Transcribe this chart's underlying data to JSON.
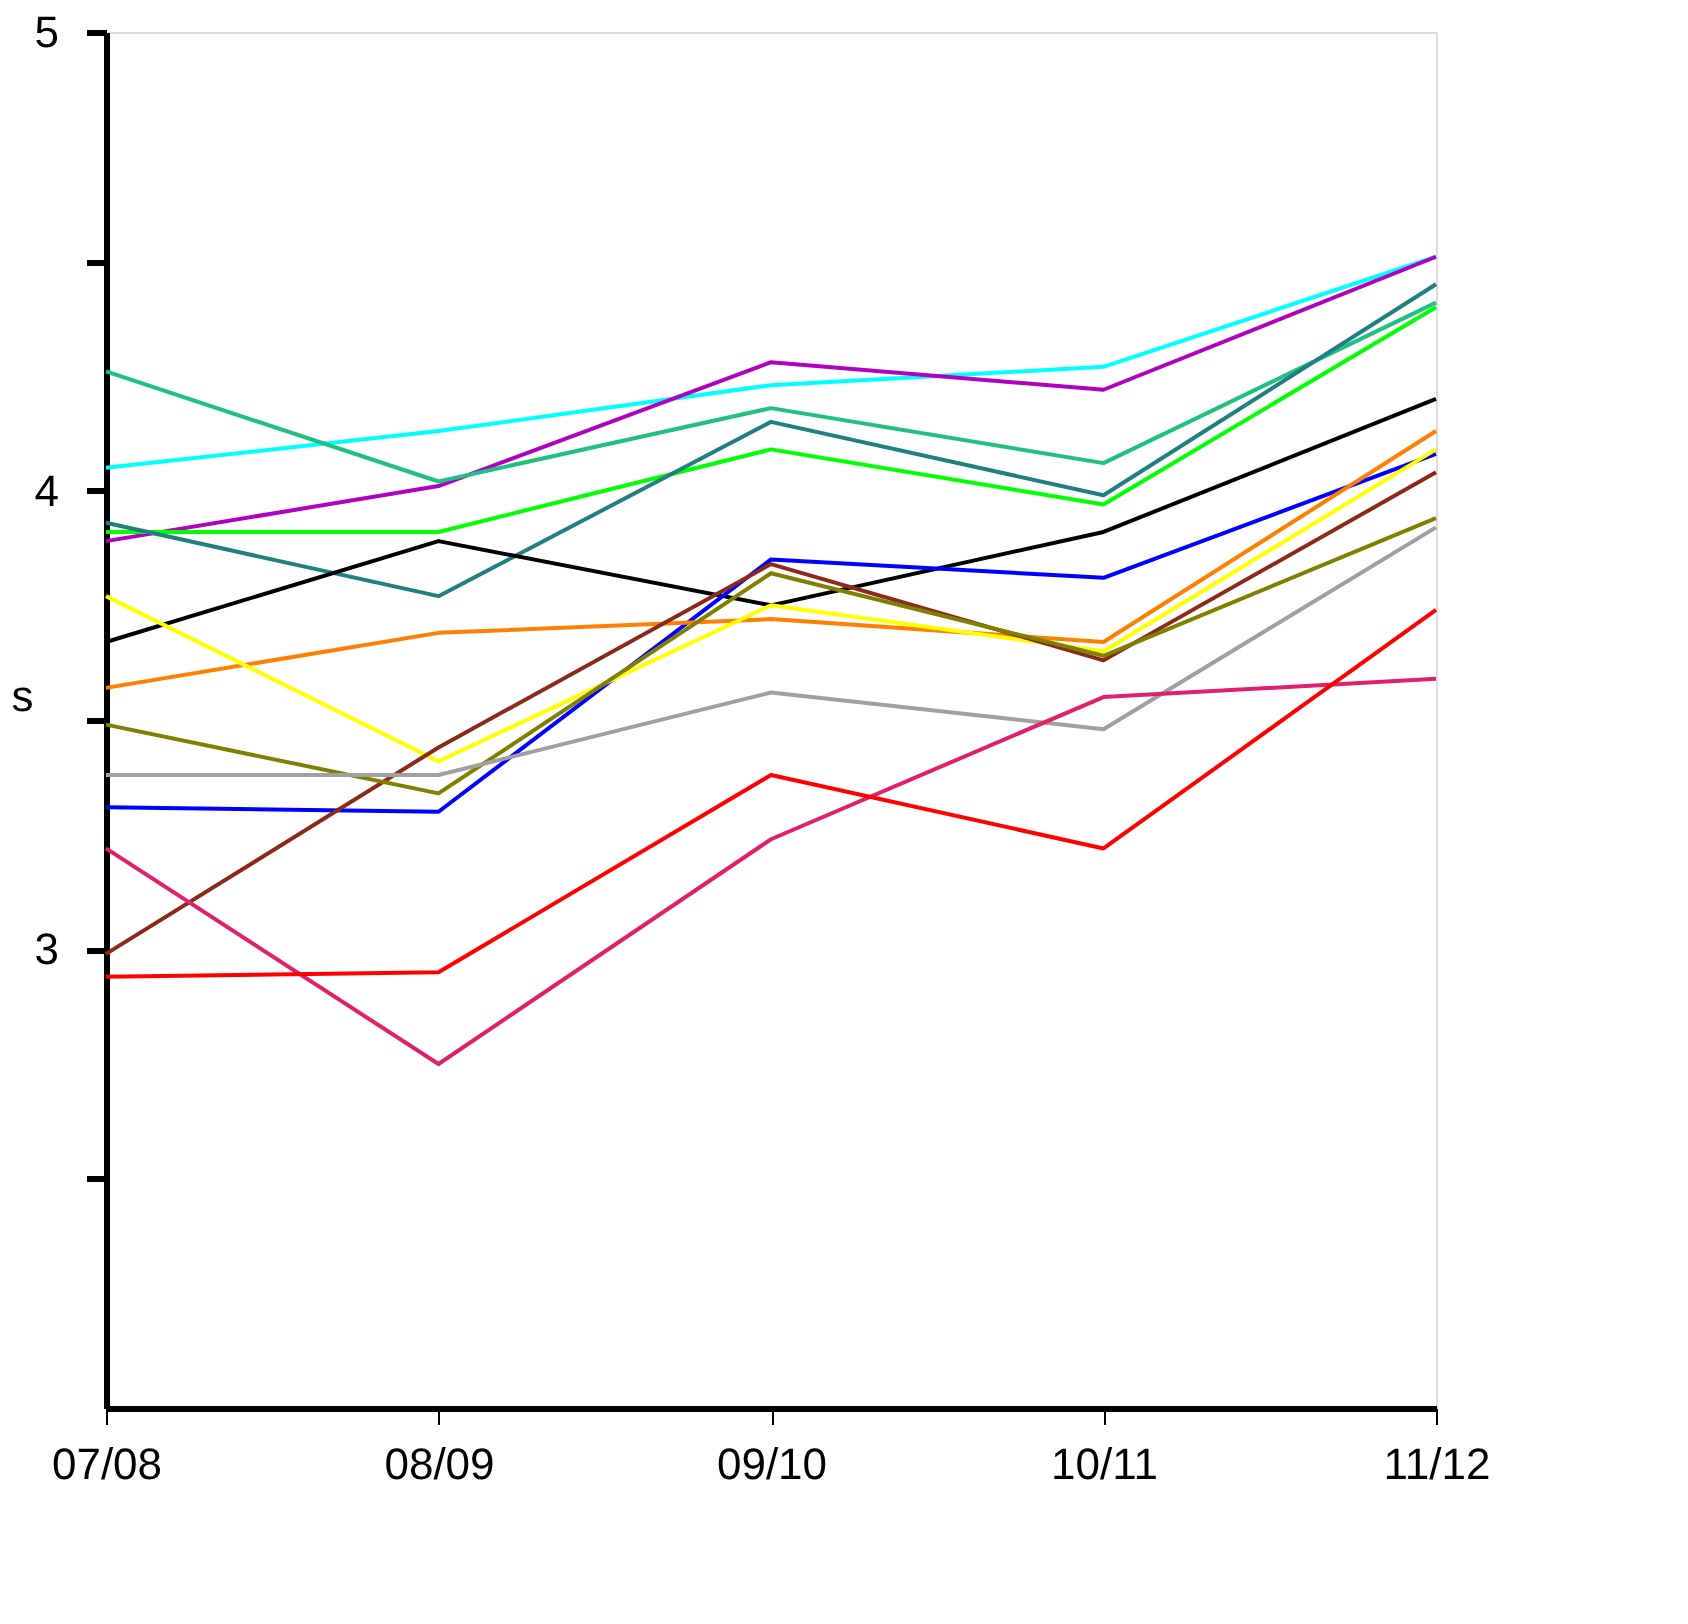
{
  "chart_data": {
    "type": "line",
    "ylabel": "s",
    "categories": [
      "07/08",
      "08/09",
      "09/10",
      "10/11",
      "11/12"
    ],
    "ylim": [
      2,
      5
    ],
    "yticks": [
      {
        "value": 2.5,
        "label": null
      },
      3,
      {
        "value": 3.5,
        "label": null
      },
      4,
      {
        "value": 4.5,
        "label": null
      },
      5
    ],
    "grid": false,
    "legend": false,
    "marker": "none",
    "line_style": "solid",
    "series": [
      {
        "color": "#00ffff",
        "values": [
          4.05,
          4.13,
          4.23,
          4.27,
          4.51
        ]
      },
      {
        "color": "#b000c0",
        "values": [
          3.89,
          4.01,
          4.28,
          4.22,
          4.51
        ]
      },
      {
        "color": "#20c080",
        "values": [
          4.26,
          4.02,
          4.18,
          4.06,
          4.41
        ]
      },
      {
        "color": "#00ff00",
        "values": [
          3.91,
          3.91,
          4.09,
          3.97,
          4.4
        ]
      },
      {
        "color": "#208080",
        "values": [
          3.93,
          3.77,
          4.15,
          3.99,
          4.45
        ]
      },
      {
        "color": "#000000",
        "values": [
          3.67,
          3.89,
          3.75,
          3.91,
          4.2
        ]
      },
      {
        "color": "#0000ff",
        "values": [
          3.31,
          3.3,
          3.85,
          3.81,
          4.08
        ]
      },
      {
        "color": "#ff8000",
        "values": [
          3.57,
          3.69,
          3.72,
          3.67,
          4.13
        ]
      },
      {
        "color": "#ffff00",
        "values": [
          3.77,
          3.41,
          3.75,
          3.65,
          4.09
        ]
      },
      {
        "color": "#8b2a1a",
        "values": [
          2.99,
          3.44,
          3.84,
          3.63,
          4.04
        ]
      },
      {
        "color": "#808000",
        "values": [
          3.49,
          3.34,
          3.82,
          3.64,
          3.94
        ]
      },
      {
        "color": "#a0a0a0",
        "values": [
          3.38,
          3.38,
          3.56,
          3.48,
          3.92
        ]
      },
      {
        "color": "#e0206a",
        "values": [
          3.22,
          2.75,
          3.24,
          3.55,
          3.59
        ]
      },
      {
        "color": "#ff0000",
        "values": [
          2.94,
          2.95,
          3.38,
          3.22,
          3.74
        ]
      }
    ]
  }
}
